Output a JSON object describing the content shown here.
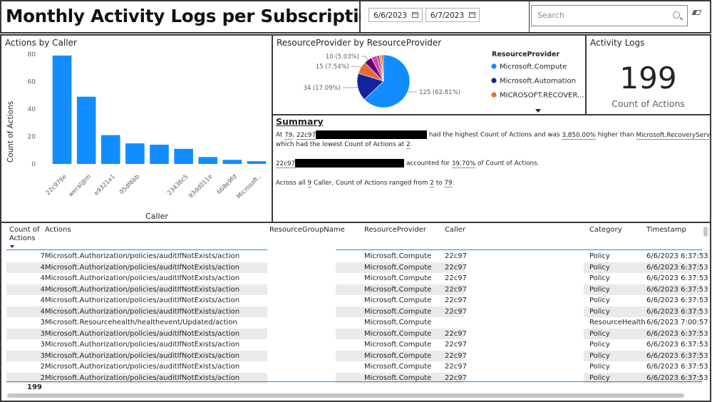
{
  "title": "Monthly Activity Logs per Subscription",
  "filters": {
    "start_date": "6/6/2023",
    "end_date": "6/7/2023",
    "search_placeholder": "Search"
  },
  "bar_chart": {
    "title": "Actions by Caller",
    "ylabel": "Count of Actions",
    "xlabel": "Caller",
    "bar_color": "#118dff"
  },
  "chart_data": [
    {
      "type": "bar",
      "title": "Actions by Caller",
      "xlabel": "Caller",
      "ylabel": "Count of Actions",
      "categories": [
        "22c976...",
        "weral@m...",
        "e9321e1...",
        "05df6bb...",
        "...",
        "23436c5...",
        "93dd011...",
        "6b8e9fd...",
        "Microsoft..."
      ],
      "values": [
        79,
        49,
        21,
        15,
        14,
        11,
        5,
        3,
        2
      ],
      "ylim": [
        0,
        80
      ],
      "yticks": [
        0,
        20,
        40,
        60,
        80
      ],
      "xtick_labels": [
        "22c976e",
        "weral@m",
        "e9321e1",
        "05df6bb",
        "",
        "23436c5",
        "93dd011e",
        "6b8e9fd",
        "Microsoft.."
      ],
      "grid": false
    },
    {
      "type": "pie",
      "title": "ResourceProvider by ResourceProvider",
      "legend_title": "ResourceProvider",
      "legend_placement": "right",
      "slices": [
        {
          "name": "Microsoft.Compute",
          "value": 125,
          "label": "125 (62.81%)",
          "color": "#118dff"
        },
        {
          "name": "Microsoft.Automation",
          "value": 34,
          "label": "34 (17.09%)",
          "color": "#12239e"
        },
        {
          "name": "MICROSOFT.RECOVER...",
          "value": 15,
          "label": "15 (7.54%)",
          "color": "#e66c37"
        },
        {
          "name": "",
          "value": 10,
          "label": "10 (5.03%)",
          "color": "#6b007b"
        },
        {
          "name": "",
          "value": 7,
          "label": "",
          "color": "#e044a7"
        },
        {
          "name": "",
          "value": 3,
          "label": "",
          "color": "#744ec2"
        },
        {
          "name": "",
          "value": 3,
          "label": "",
          "color": "#d9b300"
        },
        {
          "name": "",
          "value": 2,
          "label": "",
          "color": "#d64550"
        }
      ]
    }
  ],
  "pie_chart": {
    "title": "ResourceProvider by ResourceProvider",
    "legend_title": "ResourceProvider",
    "legend_items": [
      {
        "label": "Microsoft.Compute",
        "color": "#118dff"
      },
      {
        "label": "Microsoft.Automation",
        "color": "#12239e"
      },
      {
        "label": "MICROSOFT.RECOVER...",
        "color": "#e66c37"
      }
    ]
  },
  "card": {
    "title": "Activity Logs",
    "value": "199",
    "label": "Count of Actions"
  },
  "summary": {
    "title": "Summary",
    "line1_a": "At ",
    "line1_num": "79",
    "line1_b": ", ",
    "line1_caller": "22c97",
    "line1_c": " had the highest Count of Actions and was ",
    "line1_pct": "3,850.00%",
    "line1_d": " higher than ",
    "line1_low": "Microsoft.RecoveryServices",
    "line1_e": ",",
    "line2_a": "which had the lowest Count of Actions at ",
    "line2_num": "2",
    "line2_b": ".",
    "line3_caller": "22c97",
    "line3_a": " accounted for ",
    "line3_pct": "39.70%",
    "line3_b": " of Count of Actions.",
    "line4_a": "Across all ",
    "line4_num": "9",
    "line4_b": " Caller, Count of Actions ranged from ",
    "line4_min": "2",
    "line4_c": " to ",
    "line4_max": "79",
    "line4_d": "."
  },
  "table": {
    "headers": {
      "count": "Count of Actions",
      "actions": "Actions",
      "rg": "ResourceGroupName",
      "rp": "ResourceProvider",
      "caller": "Caller",
      "category": "Category",
      "timestamp": "Timestamp"
    },
    "rows": [
      {
        "count": "7",
        "action": "Microsoft.Authorization/policies/auditIfNotExists/action",
        "rp": "Microsoft.Compute",
        "caller": "22c97",
        "category": "Policy",
        "ts": "6/6/2023 6:37:53"
      },
      {
        "count": "4",
        "action": "Microsoft.Authorization/policies/auditIfNotExists/action",
        "rp": "Microsoft.Compute",
        "caller": "22c97",
        "category": "Policy",
        "ts": "6/6/2023 6:37:53"
      },
      {
        "count": "4",
        "action": "Microsoft.Authorization/policies/auditIfNotExists/action",
        "rp": "Microsoft.Compute",
        "caller": "22c97",
        "category": "Policy",
        "ts": "6/6/2023 6:37:53"
      },
      {
        "count": "4",
        "action": "Microsoft.Authorization/policies/auditIfNotExists/action",
        "rp": "Microsoft.Compute",
        "caller": "22c97",
        "category": "Policy",
        "ts": "6/6/2023 6:37:53"
      },
      {
        "count": "4",
        "action": "Microsoft.Authorization/policies/auditIfNotExists/action",
        "rp": "Microsoft.Compute",
        "caller": "22c97",
        "category": "Policy",
        "ts": "6/6/2023 6:37:53"
      },
      {
        "count": "4",
        "action": "Microsoft.Authorization/policies/auditIfNotExists/action",
        "rp": "Microsoft.Compute",
        "caller": "22c97",
        "category": "Policy",
        "ts": "6/6/2023 6:37:53"
      },
      {
        "count": "3",
        "action": "Microsoft.Resourcehealth/healthevent/Updated/action",
        "rp": "Microsoft.Compute",
        "caller": "",
        "category": "ResourceHealth",
        "ts": "6/6/2023 7:00:57"
      },
      {
        "count": "3",
        "action": "Microsoft.Authorization/policies/auditIfNotExists/action",
        "rp": "Microsoft.Compute",
        "caller": "22c97",
        "category": "Policy",
        "ts": "6/6/2023 6:37:53"
      },
      {
        "count": "3",
        "action": "Microsoft.Authorization/policies/auditIfNotExists/action",
        "rp": "Microsoft.Compute",
        "caller": "22c97",
        "category": "Policy",
        "ts": "6/6/2023 6:37:53"
      },
      {
        "count": "3",
        "action": "Microsoft.Authorization/policies/auditIfNotExists/action",
        "rp": "Microsoft.Compute",
        "caller": "22c97",
        "category": "Policy",
        "ts": "6/6/2023 6:37:53"
      },
      {
        "count": "2",
        "action": "Microsoft.Authorization/policies/auditIfNotExists/action",
        "rp": "Microsoft.Compute",
        "caller": "22c97",
        "category": "Policy",
        "ts": "6/6/2023 6:37:53"
      },
      {
        "count": "2",
        "action": "Microsoft.Authorization/policies/auditIfNotExists/action",
        "rp": "Microsoft.Compute",
        "caller": "22c97",
        "category": "Policy",
        "ts": "6/6/2023 6:37:53"
      }
    ],
    "total": "199"
  }
}
